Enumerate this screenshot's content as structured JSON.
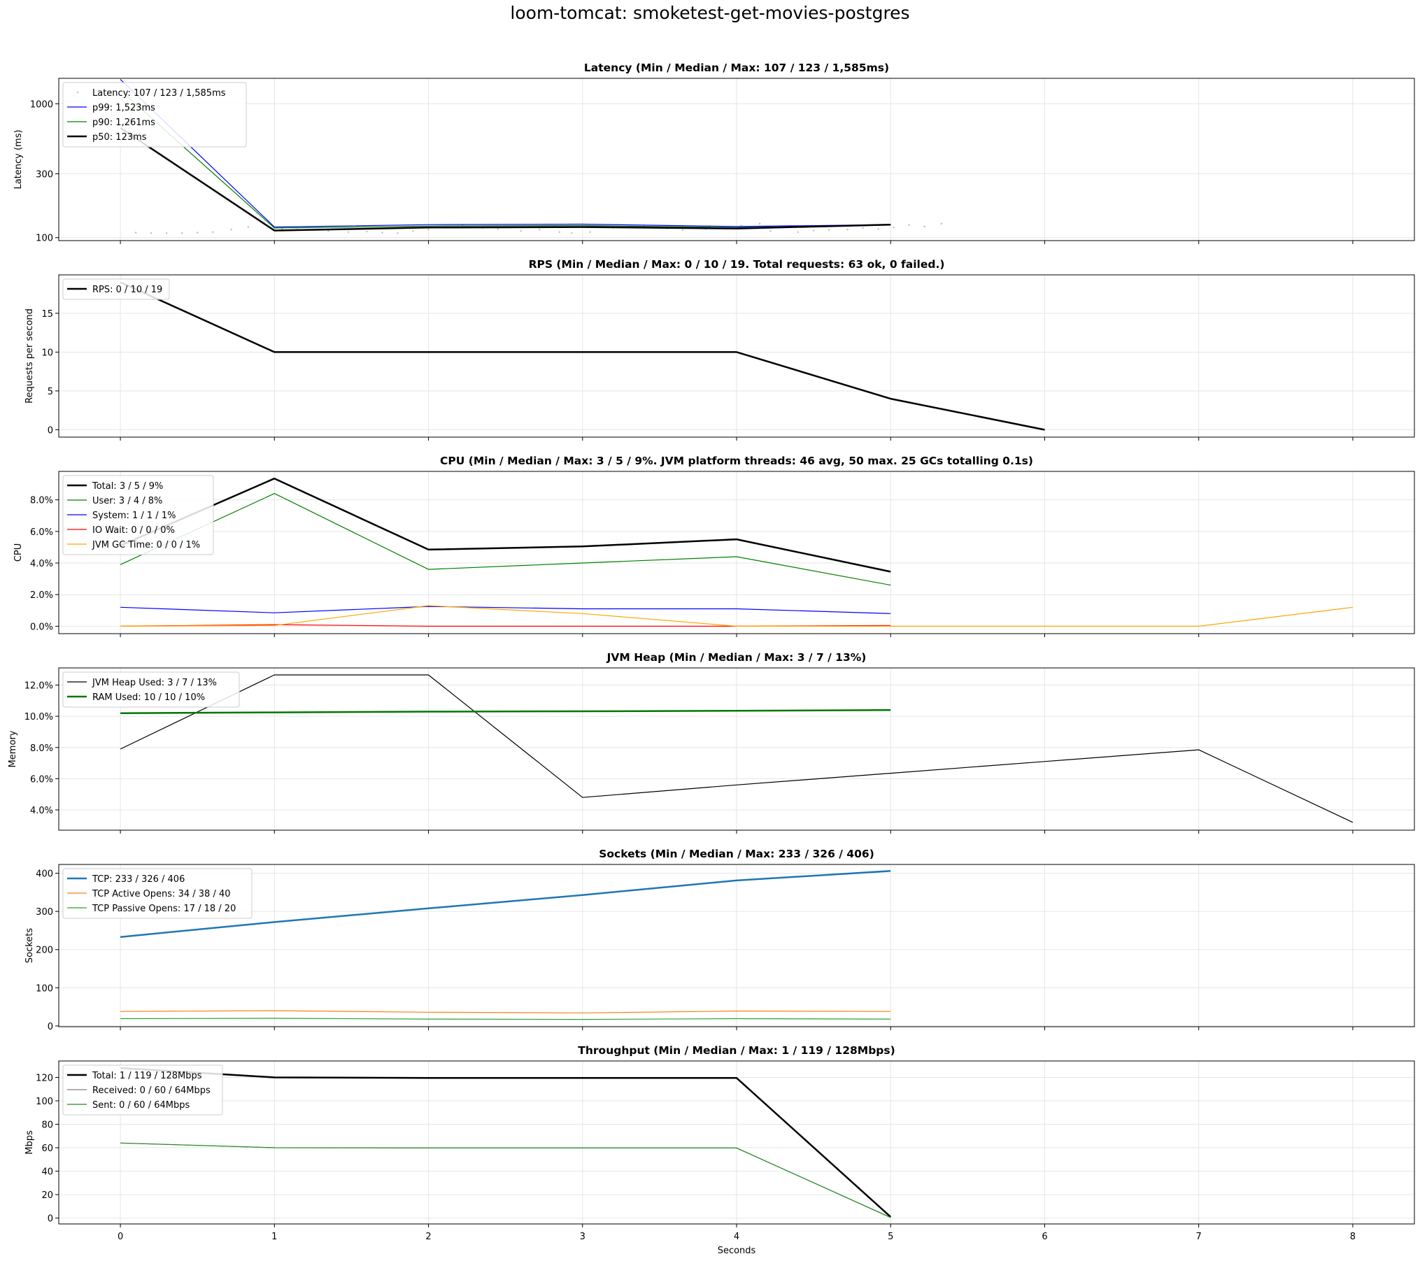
{
  "figure": {
    "title": "loom-tomcat: smoketest-get-movies-postgres"
  },
  "chart_data": [
    {
      "type": "line",
      "title": "Latency (Min / Median / Max: 107 / 123 / 1,585ms)",
      "xlabel": "",
      "ylabel": "Latency (ms)",
      "yscale": "log",
      "xlim": [
        -0.4,
        8.4
      ],
      "ylim": [
        95,
        1550
      ],
      "yticks": [
        100,
        300,
        1000
      ],
      "ytick_labels": [
        "100",
        "300",
        "1000"
      ],
      "xticks": [
        0,
        1,
        2,
        3,
        4,
        5,
        6,
        7,
        8
      ],
      "grid": true,
      "legend": "top-left",
      "series": [
        {
          "name": "Latency: 107 / 123 / 1,585ms",
          "kind": "scatter",
          "color": "#bbbbbb",
          "x": [
            0.1,
            0.2,
            0.3,
            0.4,
            0.5,
            0.6,
            0.72,
            0.83,
            1.05,
            1.15,
            1.25,
            1.35,
            1.48,
            1.6,
            1.7,
            1.8,
            1.9,
            2.0,
            2.12,
            2.22,
            2.35,
            2.45,
            2.6,
            2.72,
            2.85,
            2.93,
            3.05,
            3.2,
            3.3,
            3.4,
            3.55,
            3.65,
            3.8,
            3.9,
            4.03,
            4.15,
            4.22,
            4.4,
            4.5,
            4.6,
            4.72,
            4.82,
            4.92,
            5.02,
            5.12,
            5.22,
            5.33
          ],
          "y": [
            109,
            108,
            108,
            108,
            109,
            110,
            115,
            120,
            116,
            115,
            114,
            112,
            110,
            111,
            109,
            108,
            112,
            115,
            120,
            125,
            118,
            116,
            112,
            115,
            110,
            108,
            110,
            118,
            120,
            122,
            117,
            114,
            116,
            119,
            123,
            127,
            112,
            110,
            113,
            114,
            115,
            118,
            116,
            119,
            124,
            121,
            127
          ]
        },
        {
          "name": "p99: 1,523ms",
          "color": "#0000ff",
          "width": 1.2,
          "x": [
            0,
            1,
            2,
            3,
            4,
            5
          ],
          "y": [
            1523,
            120,
            125,
            126,
            121,
            125
          ]
        },
        {
          "name": "p90: 1,261ms",
          "color": "#008000",
          "width": 1.2,
          "x": [
            0,
            1,
            2,
            3,
            4,
            5
          ],
          "y": [
            1261,
            118,
            122,
            123,
            119,
            124
          ]
        },
        {
          "name": "p50: 123ms",
          "color": "#000000",
          "width": 2.5,
          "x": [
            0,
            1,
            2,
            3,
            4,
            5
          ],
          "y": [
            660,
            113,
            119,
            120,
            117,
            125
          ]
        }
      ]
    },
    {
      "type": "line",
      "title": "RPS (Min / Median / Max: 0 / 10 / 19. Total requests: 63 ok, 0 failed.)",
      "xlabel": "",
      "ylabel": "Requests per second",
      "xlim": [
        -0.4,
        8.4
      ],
      "ylim": [
        -0.95,
        19.95
      ],
      "yticks": [
        0,
        5,
        10,
        15
      ],
      "ytick_labels": [
        "0",
        "5",
        "10",
        "15"
      ],
      "xticks": [
        0,
        1,
        2,
        3,
        4,
        5,
        6,
        7,
        8
      ],
      "grid": true,
      "legend": "top-left",
      "series": [
        {
          "name": "RPS: 0 / 10 / 19",
          "color": "#000000",
          "width": 2.5,
          "x": [
            0,
            1,
            2,
            3,
            4,
            5,
            6
          ],
          "y": [
            19,
            10,
            10,
            10,
            10,
            4,
            0
          ]
        }
      ]
    },
    {
      "type": "line",
      "title": "CPU (Min / Median / Max: 3 / 5 / 9%. JVM platform threads: 46 avg, 50 max. 25 GCs totalling 0.1s)",
      "xlabel": "",
      "ylabel": "CPU",
      "xlim": [
        -0.4,
        8.4
      ],
      "ylim": [
        -0.47,
        9.8
      ],
      "yticks": [
        0,
        2,
        4,
        6,
        8
      ],
      "ytick_labels": [
        "0.0%",
        "2.0%",
        "4.0%",
        "6.0%",
        "8.0%"
      ],
      "xticks": [
        0,
        1,
        2,
        3,
        4,
        5,
        6,
        7,
        8
      ],
      "grid": true,
      "legend": "top-left",
      "series": [
        {
          "name": "Total: 3 / 5 / 9%",
          "color": "#000000",
          "width": 2.5,
          "x": [
            0,
            1,
            2,
            3,
            4,
            5
          ],
          "y": [
            5.1,
            9.35,
            4.85,
            5.05,
            5.5,
            3.45
          ]
        },
        {
          "name": "User: 3 / 4 / 8%",
          "color": "#008000",
          "width": 1.2,
          "x": [
            0,
            1,
            2,
            3,
            4,
            5
          ],
          "y": [
            3.9,
            8.4,
            3.6,
            4.0,
            4.4,
            2.6
          ]
        },
        {
          "name": "System: 1 / 1 / 1%",
          "color": "#0000ff",
          "width": 1.2,
          "x": [
            0,
            1,
            2,
            3,
            4,
            5
          ],
          "y": [
            1.2,
            0.85,
            1.25,
            1.1,
            1.1,
            0.8
          ]
        },
        {
          "name": "IO Wait: 0 / 0 / 0%",
          "color": "#ff0000",
          "width": 1.2,
          "x": [
            0,
            1,
            2,
            3,
            4,
            5
          ],
          "y": [
            0.0,
            0.1,
            0.0,
            0.0,
            0.0,
            0.05
          ]
        },
        {
          "name": "JVM GC Time: 0 / 0 / 1%",
          "color": "#ffa500",
          "width": 1.2,
          "x": [
            0,
            1,
            2,
            3,
            4,
            5,
            6,
            7,
            8
          ],
          "y": [
            0.0,
            0.05,
            1.3,
            0.8,
            0.0,
            0.0,
            0.0,
            0.0,
            1.2
          ]
        }
      ]
    },
    {
      "type": "line",
      "title": "JVM Heap (Min / Median / Max: 3 / 7 / 13%)",
      "xlabel": "",
      "ylabel": "Memory",
      "xlim": [
        -0.4,
        8.4
      ],
      "ylim": [
        2.7,
        13.1
      ],
      "yticks": [
        4,
        6,
        8,
        10,
        12
      ],
      "ytick_labels": [
        "4.0%",
        "6.0%",
        "8.0%",
        "10.0%",
        "12.0%"
      ],
      "xticks": [
        0,
        1,
        2,
        3,
        4,
        5,
        6,
        7,
        8
      ],
      "grid": true,
      "legend": "top-left",
      "series": [
        {
          "name": "JVM Heap Used: 3 / 7 / 13%",
          "color": "#000000",
          "width": 1.2,
          "x": [
            0,
            1,
            2,
            3,
            4,
            5,
            6,
            7,
            8
          ],
          "y": [
            7.9,
            12.65,
            12.65,
            4.8,
            5.6,
            6.35,
            7.1,
            7.85,
            3.2
          ]
        },
        {
          "name": "RAM Used: 10 / 10 / 10%",
          "color": "#007800",
          "width": 2.5,
          "x": [
            0,
            1,
            2,
            3,
            4,
            5
          ],
          "y": [
            10.2,
            10.25,
            10.3,
            10.32,
            10.35,
            10.4
          ]
        }
      ]
    },
    {
      "type": "line",
      "title": "Sockets (Min / Median / Max: 233 / 326 / 406)",
      "xlabel": "",
      "ylabel": "Sockets",
      "xlim": [
        -0.4,
        8.4
      ],
      "ylim": [
        -2,
        423
      ],
      "yticks": [
        0,
        100,
        200,
        300,
        400
      ],
      "ytick_labels": [
        "0",
        "100",
        "200",
        "300",
        "400"
      ],
      "xticks": [
        0,
        1,
        2,
        3,
        4,
        5,
        6,
        7,
        8
      ],
      "grid": true,
      "legend": "top-left",
      "series": [
        {
          "name": "TCP: 233 / 326 / 406",
          "color": "#1f77b4",
          "width": 2.5,
          "x": [
            0,
            1,
            2,
            3,
            4,
            5
          ],
          "y": [
            233,
            272,
            308,
            343,
            381,
            406
          ]
        },
        {
          "name": "TCP Active Opens: 34 / 38 / 40",
          "color": "#ff7f0e",
          "width": 1.2,
          "x": [
            0,
            1,
            2,
            3,
            4,
            5
          ],
          "y": [
            38,
            40,
            36,
            34,
            39,
            38
          ]
        },
        {
          "name": "TCP Passive Opens: 17 / 18 / 20",
          "color": "#2ca02c",
          "width": 1.2,
          "x": [
            0,
            1,
            2,
            3,
            4,
            5
          ],
          "y": [
            19,
            20,
            18,
            17,
            19,
            18
          ]
        }
      ]
    },
    {
      "type": "line",
      "title": "Throughput (Min / Median / Max: 1 / 119 / 128Mbps)",
      "xlabel": "Seconds",
      "ylabel": "Mbps",
      "xlim": [
        -0.4,
        8.4
      ],
      "ylim": [
        -5,
        134
      ],
      "yticks": [
        0,
        20,
        40,
        60,
        80,
        100,
        120
      ],
      "ytick_labels": [
        "0",
        "20",
        "40",
        "60",
        "80",
        "100",
        "120"
      ],
      "xticks": [
        0,
        1,
        2,
        3,
        4,
        5,
        6,
        7,
        8
      ],
      "xtick_labels": [
        "0",
        "1",
        "2",
        "3",
        "4",
        "5",
        "6",
        "7",
        "8"
      ],
      "grid": true,
      "legend": "top-left",
      "series": [
        {
          "name": "Total: 1 / 119 / 128Mbps",
          "color": "#000000",
          "width": 2.5,
          "x": [
            0,
            1,
            2,
            3,
            4,
            5
          ],
          "y": [
            128,
            120,
            119.5,
            119.5,
            119.5,
            1
          ]
        },
        {
          "name": "Received: 0 / 60 / 64Mbps",
          "color": "#808080",
          "width": 1.2,
          "x": [
            0,
            1,
            2,
            3,
            4,
            5
          ],
          "y": [
            64,
            60,
            59.8,
            59.8,
            59.8,
            0.5
          ]
        },
        {
          "name": "Sent: 0 / 60 / 64Mbps",
          "color": "#228b22",
          "width": 1.2,
          "x": [
            0,
            1,
            2,
            3,
            4,
            5
          ],
          "y": [
            64,
            60,
            59.8,
            59.8,
            59.8,
            0.5
          ]
        }
      ]
    }
  ]
}
